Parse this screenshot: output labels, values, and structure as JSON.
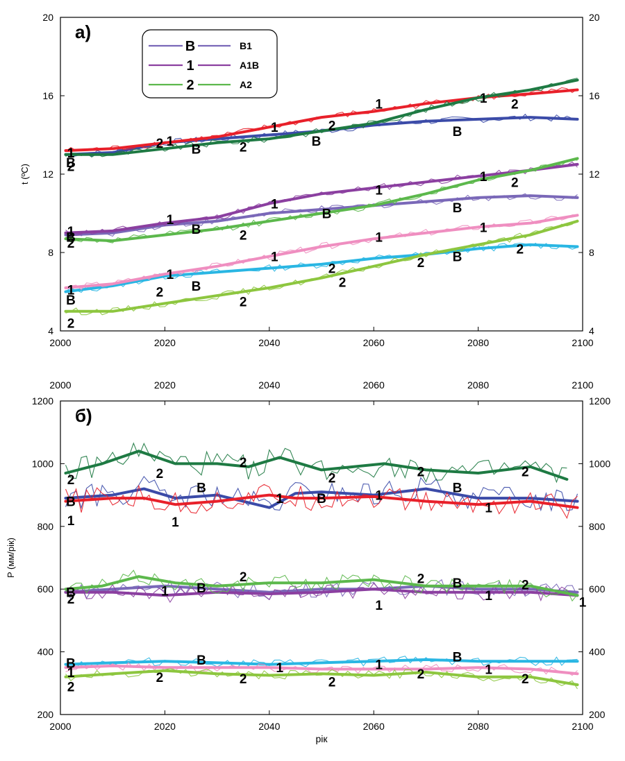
{
  "colors": {
    "B1": [
      "#3b4ba8",
      "#7a68b8",
      "#29b6e3"
    ],
    "A1B": [
      "#e8202a",
      "#8b3fa0",
      "#ef8ec0"
    ],
    "A2": [
      "#1e7a43",
      "#5cb84c",
      "#8dc63f"
    ]
  },
  "legend": {
    "entries": [
      {
        "marker": "B",
        "name": "B1",
        "color": "#7a68b8"
      },
      {
        "marker": "1",
        "name": "A1B",
        "color": "#8b3fa0"
      },
      {
        "marker": "2",
        "name": "A2",
        "color": "#5cb84c"
      }
    ]
  },
  "chart_data": [
    {
      "type": "line",
      "panel_label": "а)",
      "title": "",
      "xlabel": "",
      "ylabel": "t (ºC)",
      "xlim": [
        2000,
        2100
      ],
      "ylim": [
        4,
        20
      ],
      "x_ticks": [
        2000,
        2020,
        2040,
        2060,
        2080,
        2100
      ],
      "y_ticks": [
        4,
        8,
        12,
        16,
        20
      ],
      "right_y_ticks": [
        4,
        8,
        12,
        16,
        20
      ],
      "top_x_ticks": [],
      "grid": false,
      "legend_position": "top-left",
      "series": [
        {
          "scenario": "B1",
          "group": 0,
          "x": [
            2001,
            2010,
            2020,
            2030,
            2040,
            2050,
            2060,
            2070,
            2080,
            2090,
            2099
          ],
          "y": [
            13.0,
            13.1,
            13.6,
            13.8,
            14.0,
            14.2,
            14.5,
            14.7,
            14.8,
            14.9,
            14.8
          ]
        },
        {
          "scenario": "A1B",
          "group": 0,
          "x": [
            2001,
            2010,
            2020,
            2030,
            2040,
            2050,
            2060,
            2070,
            2080,
            2090,
            2099
          ],
          "y": [
            13.2,
            13.3,
            13.6,
            13.9,
            14.4,
            14.9,
            15.2,
            15.6,
            15.9,
            16.1,
            16.3
          ]
        },
        {
          "scenario": "A2",
          "group": 0,
          "x": [
            2001,
            2010,
            2020,
            2030,
            2040,
            2050,
            2060,
            2070,
            2080,
            2090,
            2099
          ],
          "y": [
            13.0,
            13.0,
            13.3,
            13.6,
            13.8,
            14.2,
            14.6,
            15.3,
            15.9,
            16.3,
            16.8
          ]
        },
        {
          "scenario": "B1",
          "group": 1,
          "x": [
            2001,
            2010,
            2020,
            2030,
            2040,
            2050,
            2060,
            2070,
            2080,
            2090,
            2099
          ],
          "y": [
            8.9,
            9.0,
            9.4,
            9.6,
            10.0,
            10.2,
            10.4,
            10.6,
            10.8,
            10.9,
            10.8
          ]
        },
        {
          "scenario": "A1B",
          "group": 1,
          "x": [
            2001,
            2010,
            2020,
            2030,
            2040,
            2050,
            2060,
            2070,
            2080,
            2090,
            2099
          ],
          "y": [
            9.0,
            9.1,
            9.5,
            9.8,
            10.5,
            11.0,
            11.3,
            11.6,
            11.9,
            12.2,
            12.5
          ]
        },
        {
          "scenario": "A2",
          "group": 1,
          "x": [
            2001,
            2010,
            2020,
            2030,
            2040,
            2050,
            2060,
            2070,
            2080,
            2090,
            2099
          ],
          "y": [
            8.7,
            8.6,
            8.9,
            9.2,
            9.6,
            10.0,
            10.4,
            11.0,
            11.7,
            12.2,
            12.8
          ]
        },
        {
          "scenario": "B1",
          "group": 2,
          "x": [
            2001,
            2010,
            2020,
            2030,
            2040,
            2050,
            2060,
            2070,
            2080,
            2090,
            2099
          ],
          "y": [
            6.0,
            6.3,
            6.8,
            7.0,
            7.2,
            7.4,
            7.7,
            7.9,
            8.2,
            8.4,
            8.3
          ]
        },
        {
          "scenario": "A1B",
          "group": 2,
          "x": [
            2001,
            2010,
            2020,
            2030,
            2040,
            2050,
            2060,
            2070,
            2080,
            2090,
            2099
          ],
          "y": [
            6.2,
            6.4,
            6.9,
            7.3,
            7.8,
            8.3,
            8.7,
            9.0,
            9.3,
            9.5,
            9.9
          ]
        },
        {
          "scenario": "A2",
          "group": 2,
          "x": [
            2001,
            2010,
            2020,
            2030,
            2040,
            2050,
            2060,
            2070,
            2080,
            2090,
            2099
          ],
          "y": [
            5.0,
            5.0,
            5.4,
            5.8,
            6.2,
            6.7,
            7.3,
            7.9,
            8.4,
            8.9,
            9.6
          ]
        }
      ],
      "annotations": [
        {
          "text": "B",
          "x": 2002,
          "y": 12.6
        },
        {
          "text": "1",
          "x": 2002,
          "y": 13.1
        },
        {
          "text": "2",
          "x": 2002,
          "y": 12.4
        },
        {
          "text": "2",
          "x": 2019,
          "y": 13.6
        },
        {
          "text": "1",
          "x": 2021,
          "y": 13.7
        },
        {
          "text": "B",
          "x": 2026,
          "y": 13.3
        },
        {
          "text": "2",
          "x": 2035,
          "y": 13.4
        },
        {
          "text": "1",
          "x": 2041,
          "y": 14.4
        },
        {
          "text": "B",
          "x": 2049,
          "y": 13.7
        },
        {
          "text": "2",
          "x": 2052,
          "y": 14.5
        },
        {
          "text": "1",
          "x": 2061,
          "y": 15.6
        },
        {
          "text": "B",
          "x": 2076,
          "y": 14.2
        },
        {
          "text": "1",
          "x": 2081,
          "y": 15.9
        },
        {
          "text": "2",
          "x": 2087,
          "y": 15.6
        },
        {
          "text": "1",
          "x": 2002,
          "y": 9.1
        },
        {
          "text": "B",
          "x": 2002,
          "y": 8.8
        },
        {
          "text": "2",
          "x": 2002,
          "y": 8.5
        },
        {
          "text": "1",
          "x": 2021,
          "y": 9.7
        },
        {
          "text": "B",
          "x": 2026,
          "y": 9.2
        },
        {
          "text": "2",
          "x": 2035,
          "y": 8.9
        },
        {
          "text": "1",
          "x": 2041,
          "y": 10.5
        },
        {
          "text": "B",
          "x": 2051,
          "y": 10.0
        },
        {
          "text": "1",
          "x": 2061,
          "y": 11.2
        },
        {
          "text": "B",
          "x": 2076,
          "y": 10.3
        },
        {
          "text": "1",
          "x": 2081,
          "y": 11.9
        },
        {
          "text": "2",
          "x": 2087,
          "y": 11.6
        },
        {
          "text": "1",
          "x": 2002,
          "y": 6.1
        },
        {
          "text": "B",
          "x": 2002,
          "y": 5.6
        },
        {
          "text": "2",
          "x": 2002,
          "y": 4.4
        },
        {
          "text": "2",
          "x": 2019,
          "y": 6.0
        },
        {
          "text": "1",
          "x": 2021,
          "y": 6.9
        },
        {
          "text": "B",
          "x": 2026,
          "y": 6.3
        },
        {
          "text": "2",
          "x": 2035,
          "y": 5.5
        },
        {
          "text": "1",
          "x": 2041,
          "y": 7.8
        },
        {
          "text": "2",
          "x": 2052,
          "y": 7.2
        },
        {
          "text": "2",
          "x": 2054,
          "y": 6.5
        },
        {
          "text": "1",
          "x": 2061,
          "y": 8.8
        },
        {
          "text": "2",
          "x": 2069,
          "y": 7.5
        },
        {
          "text": "B",
          "x": 2076,
          "y": 7.8
        },
        {
          "text": "1",
          "x": 2081,
          "y": 9.3
        },
        {
          "text": "2",
          "x": 2088,
          "y": 8.2
        }
      ]
    },
    {
      "type": "line",
      "panel_label": "б)",
      "title": "",
      "xlabel": "рік",
      "ylabel": "P  (мм/рік)",
      "xlim": [
        2000,
        2100
      ],
      "ylim": [
        200,
        1200
      ],
      "x_ticks": [
        2000,
        2020,
        2040,
        2060,
        2080,
        2100
      ],
      "top_x_ticks": [
        2000,
        2020,
        2040,
        2060,
        2080,
        2100
      ],
      "y_ticks": [
        200,
        400,
        600,
        800,
        1000,
        1200
      ],
      "right_y_ticks": [
        200,
        400,
        600,
        800,
        1000,
        1200
      ],
      "grid": false,
      "legend_position": "none",
      "series": [
        {
          "scenario": "B1",
          "group": 0,
          "x": [
            2001,
            2010,
            2016,
            2022,
            2030,
            2040,
            2045,
            2050,
            2060,
            2070,
            2080,
            2090,
            2099
          ],
          "y": [
            890,
            900,
            920,
            890,
            900,
            860,
            905,
            910,
            900,
            920,
            890,
            890,
            880
          ]
        },
        {
          "scenario": "A1B",
          "group": 0,
          "x": [
            2001,
            2010,
            2016,
            2022,
            2030,
            2040,
            2045,
            2050,
            2060,
            2070,
            2080,
            2090,
            2099
          ],
          "y": [
            880,
            890,
            890,
            870,
            880,
            900,
            890,
            890,
            895,
            880,
            870,
            880,
            860
          ]
        },
        {
          "scenario": "A2",
          "group": 0,
          "x": [
            2001,
            2008,
            2015,
            2022,
            2030,
            2036,
            2042,
            2050,
            2062,
            2070,
            2080,
            2090,
            2097
          ],
          "y": [
            970,
            1000,
            1040,
            1000,
            1000,
            990,
            1020,
            980,
            1000,
            980,
            970,
            990,
            950
          ]
        },
        {
          "scenario": "B1",
          "group": 1,
          "x": [
            2001,
            2010,
            2020,
            2030,
            2040,
            2050,
            2060,
            2070,
            2080,
            2090,
            2099
          ],
          "y": [
            590,
            600,
            610,
            600,
            590,
            600,
            600,
            610,
            600,
            600,
            590
          ]
        },
        {
          "scenario": "A1B",
          "group": 1,
          "x": [
            2001,
            2010,
            2020,
            2030,
            2040,
            2050,
            2060,
            2070,
            2080,
            2090,
            2099
          ],
          "y": [
            590,
            590,
            580,
            590,
            585,
            590,
            600,
            590,
            590,
            590,
            580
          ]
        },
        {
          "scenario": "A2",
          "group": 1,
          "x": [
            2001,
            2008,
            2015,
            2022,
            2030,
            2040,
            2050,
            2060,
            2070,
            2080,
            2090,
            2099
          ],
          "y": [
            600,
            610,
            640,
            620,
            610,
            620,
            620,
            630,
            610,
            610,
            610,
            580
          ]
        },
        {
          "scenario": "B1",
          "group": 2,
          "x": [
            2001,
            2010,
            2020,
            2030,
            2040,
            2050,
            2060,
            2070,
            2080,
            2090,
            2099
          ],
          "y": [
            360,
            365,
            370,
            365,
            360,
            365,
            370,
            375,
            370,
            370,
            370
          ]
        },
        {
          "scenario": "A1B",
          "group": 2,
          "x": [
            2001,
            2010,
            2020,
            2030,
            2040,
            2050,
            2060,
            2070,
            2080,
            2090,
            2099
          ],
          "y": [
            350,
            355,
            350,
            350,
            350,
            345,
            345,
            345,
            350,
            345,
            330
          ]
        },
        {
          "scenario": "A2",
          "group": 2,
          "x": [
            2001,
            2010,
            2020,
            2030,
            2040,
            2050,
            2060,
            2070,
            2080,
            2090,
            2099
          ],
          "y": [
            320,
            330,
            340,
            330,
            325,
            330,
            325,
            335,
            320,
            320,
            295
          ]
        }
      ],
      "annotations": [
        {
          "text": "2",
          "x": 2002,
          "y": 950
        },
        {
          "text": "B",
          "x": 2002,
          "y": 880
        },
        {
          "text": "1",
          "x": 2002,
          "y": 820
        },
        {
          "text": "2",
          "x": 2019,
          "y": 970
        },
        {
          "text": "1",
          "x": 2022,
          "y": 815
        },
        {
          "text": "B",
          "x": 2027,
          "y": 925
        },
        {
          "text": "2",
          "x": 2035,
          "y": 1005
        },
        {
          "text": "1",
          "x": 2042,
          "y": 890
        },
        {
          "text": "2",
          "x": 2052,
          "y": 955
        },
        {
          "text": "B",
          "x": 2050,
          "y": 890
        },
        {
          "text": "1",
          "x": 2061,
          "y": 900
        },
        {
          "text": "2",
          "x": 2069,
          "y": 975
        },
        {
          "text": "B",
          "x": 2076,
          "y": 925
        },
        {
          "text": "1",
          "x": 2082,
          "y": 860
        },
        {
          "text": "2",
          "x": 2089,
          "y": 975
        },
        {
          "text": "B",
          "x": 2002,
          "y": 590
        },
        {
          "text": "2",
          "x": 2002,
          "y": 570
        },
        {
          "text": "1",
          "x": 2020,
          "y": 595
        },
        {
          "text": "B",
          "x": 2027,
          "y": 605
        },
        {
          "text": "2",
          "x": 2035,
          "y": 640
        },
        {
          "text": "1",
          "x": 2061,
          "y": 550
        },
        {
          "text": "2",
          "x": 2069,
          "y": 635
        },
        {
          "text": "B",
          "x": 2076,
          "y": 620
        },
        {
          "text": "1",
          "x": 2082,
          "y": 580
        },
        {
          "text": "2",
          "x": 2089,
          "y": 615
        },
        {
          "text": "1",
          "x": 2100,
          "y": 560
        },
        {
          "text": "B",
          "x": 2002,
          "y": 365
        },
        {
          "text": "1",
          "x": 2002,
          "y": 335
        },
        {
          "text": "2",
          "x": 2002,
          "y": 290
        },
        {
          "text": "2",
          "x": 2019,
          "y": 320
        },
        {
          "text": "B",
          "x": 2027,
          "y": 375
        },
        {
          "text": "2",
          "x": 2035,
          "y": 315
        },
        {
          "text": "1",
          "x": 2042,
          "y": 350
        },
        {
          "text": "2",
          "x": 2052,
          "y": 305
        },
        {
          "text": "1",
          "x": 2061,
          "y": 360
        },
        {
          "text": "2",
          "x": 2069,
          "y": 330
        },
        {
          "text": "B",
          "x": 2076,
          "y": 385
        },
        {
          "text": "1",
          "x": 2082,
          "y": 345
        },
        {
          "text": "2",
          "x": 2089,
          "y": 315
        }
      ]
    }
  ]
}
